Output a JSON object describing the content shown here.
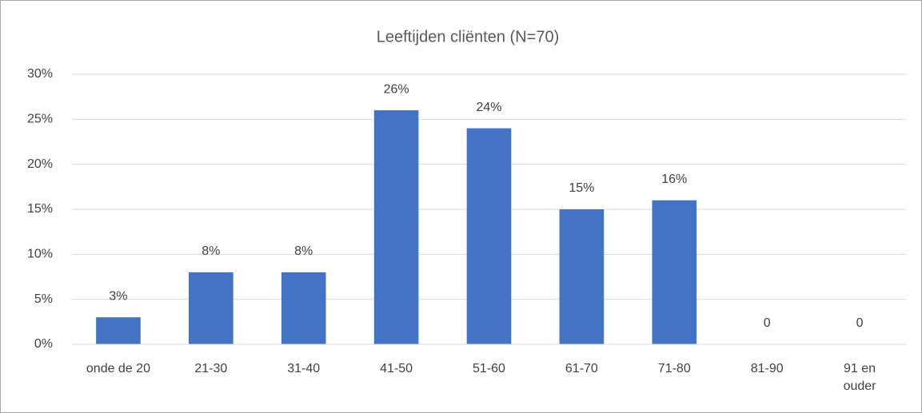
{
  "chart_data": {
    "type": "bar",
    "title": "Leeftijden cliënten (N=70)",
    "categories": [
      "onde de 20",
      "21-30",
      "31-40",
      "41-50",
      "51-60",
      "61-70",
      "71-80",
      "81-90",
      "91 en ouder"
    ],
    "values": [
      3,
      8,
      8,
      26,
      24,
      15,
      16,
      0,
      0
    ],
    "value_labels": [
      "3%",
      "8%",
      "8%",
      "26%",
      "24%",
      "15%",
      "16%",
      "0",
      "0"
    ],
    "color": "#4472c4",
    "ylim": [
      0,
      30
    ],
    "yticks": [
      {
        "value": 0,
        "label": "0%"
      },
      {
        "value": 5,
        "label": "5%"
      },
      {
        "value": 10,
        "label": "10%"
      },
      {
        "value": 15,
        "label": "15%"
      },
      {
        "value": 20,
        "label": "20%"
      },
      {
        "value": 25,
        "label": "25%"
      },
      {
        "value": 30,
        "label": "30%"
      }
    ],
    "grid": true
  }
}
